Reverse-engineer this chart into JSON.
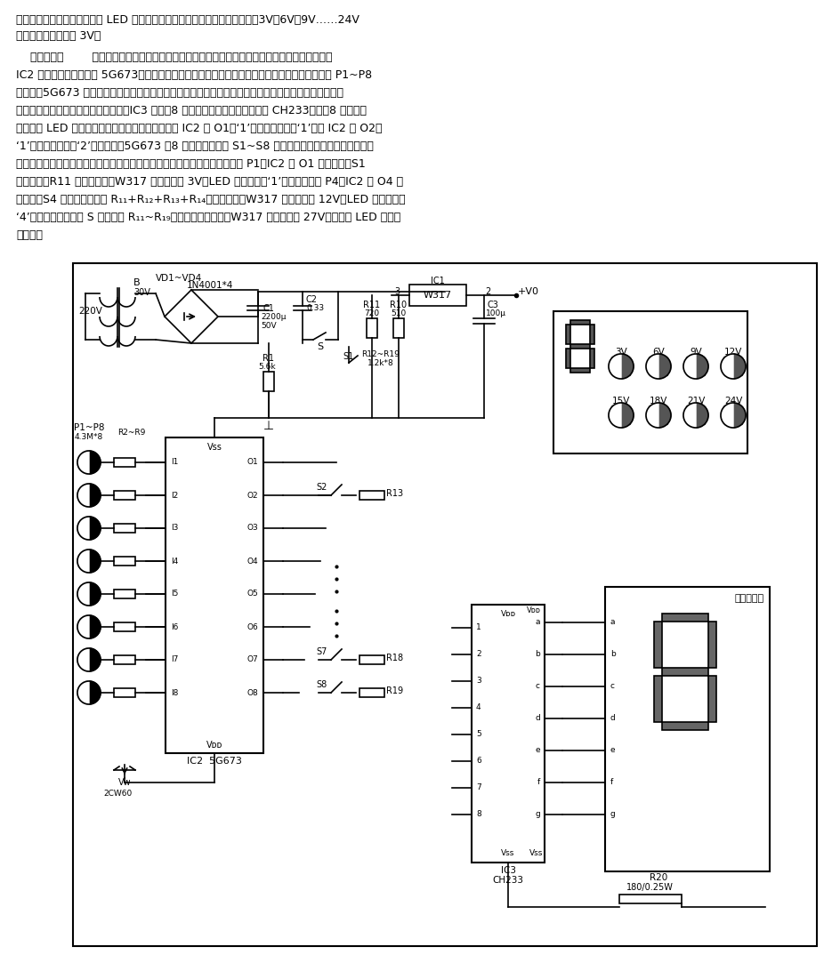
{
  "bg_color": "#ffffff",
  "text_color": "#000000",
  "p1": "本电路是一种数字控制的且有 LED 数字显示的可调集成稳压电源，输出电压有3V、6V、9V……24V",
  "p1b": "等八挡，其步进值为 3V。",
  "p2_lines": [
    "    电路示于图        主要由直流稳压电源的输出电路、数控电压选择电路和数字显示电路三部分组成。",
    "IC2 是电子开关集成电路 5G673，用于触摸任一输入端时，其相对应的输出端就为高电平。当触摸 P1~P8",
    "时，使得5G673 相应的输入端相当于接低电平，而与该输入端相对应的输出端则变为高电平，其余七个输",
    "出端因其内部的互锁作用均为低电平。IC3 是具月8 个输入端的译码驱动集成电路 CH233。它的8 个输入端",
    "与后接的 LED 数码管显示的数字一一对应。所以当 IC2 的 O1＝‘1’时，数码管显示‘1’；当 IC2 的 O2＝",
    "‘1’时，数码管显示‘2’；余类推。5G673 的8 个输出端分别接 S1~S8 模拟开关，当某一个输出端输出高",
    "电平时，相对应的开关闭合，一定数值的电阵就被接入串联电路。例如，触摸 P1，IC2 的 O1 为高电平，S1",
    "导通闭合，R11 被接入电路，W317 输出电压为 3V，LED 数码管显示‘1’；又如，触摸 P4，IC2 的 O4 为",
    "高电平，S4 导通闭合，电阵 R₁₁+R₁₂+R₁₃+R₁₄被接入电路，W317 输出电压为 12V，LED 数码管显示",
    "‘4’。当开机闭合开关 S 时，电阵 R₁₁~R₁₉全部串联接入电路，W317 输出电压为 27V，但此时 LED 数码管",
    "不显示。"
  ]
}
